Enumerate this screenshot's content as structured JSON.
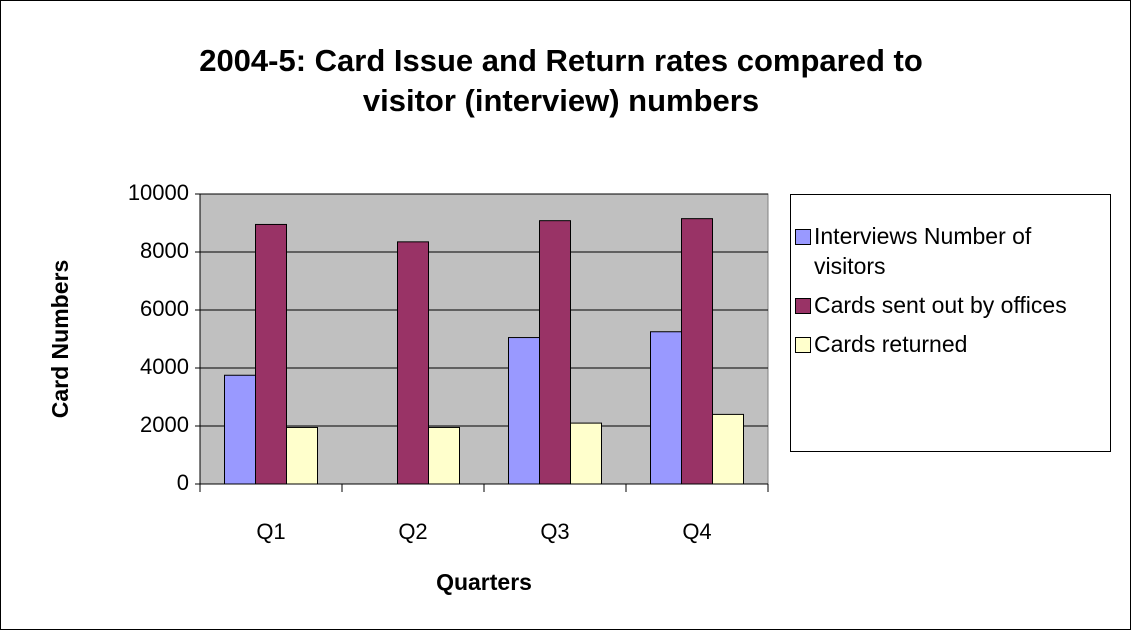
{
  "chart_data": {
    "type": "bar",
    "title": "2004-5: Card Issue and Return rates compared to visitor (interview) numbers",
    "x_label": "Quarters",
    "y_label": "Card Numbers",
    "categories": [
      "Q1",
      "Q2",
      "Q3",
      "Q4"
    ],
    "series": [
      {
        "name": "Interviews Number of visitors",
        "color": "#9999ff",
        "values": [
          3750,
          null,
          5050,
          5250
        ]
      },
      {
        "name": "Cards sent out by offices",
        "color": "#993366",
        "values": [
          8950,
          8350,
          9080,
          9150
        ]
      },
      {
        "name": "Cards returned",
        "color": "#ffffcc",
        "values": [
          1950,
          1950,
          2100,
          2400
        ]
      }
    ],
    "ylim": [
      0,
      10000
    ],
    "yticks": [
      0,
      2000,
      4000,
      6000,
      8000,
      10000
    ],
    "grid": true,
    "legend": "right",
    "plot_background": "#c0c0c0"
  }
}
